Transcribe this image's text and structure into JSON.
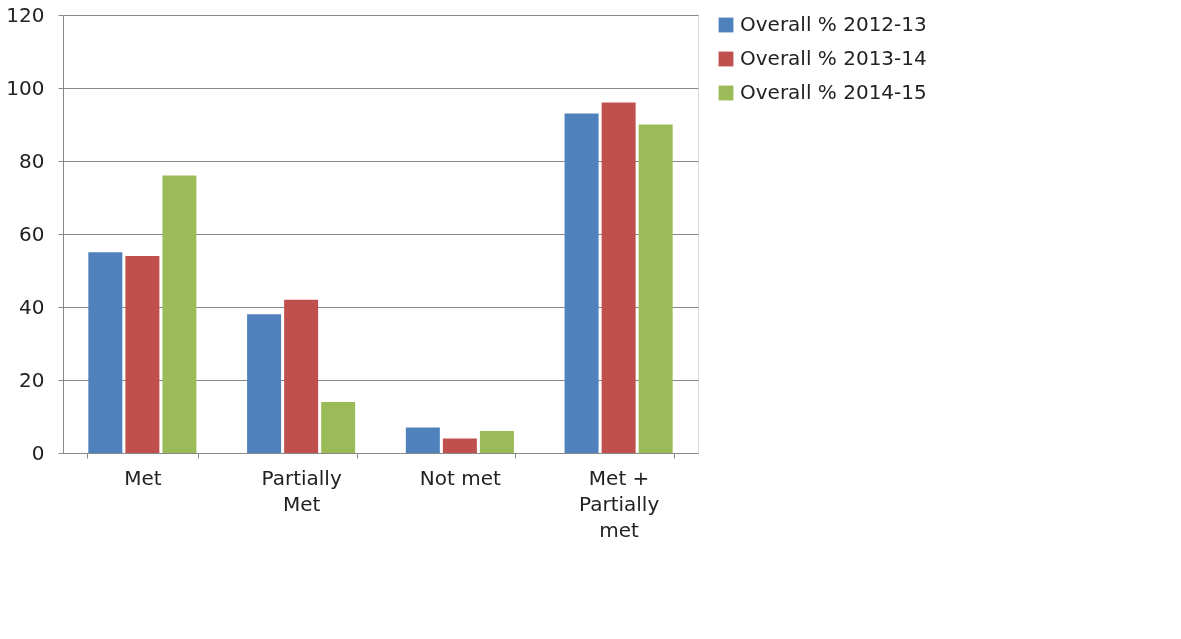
{
  "chart_data": {
    "type": "bar",
    "categories": [
      "Met",
      "Partially Met",
      "Not met",
      "Met + Partially met"
    ],
    "series": [
      {
        "name": "Overall % 2012-13",
        "color": "#4f81bd",
        "values": [
          55,
          38,
          7,
          93
        ]
      },
      {
        "name": "Overall % 2013-14",
        "color": "#c0504d",
        "values": [
          54,
          42,
          4,
          96
        ]
      },
      {
        "name": "Overall %  2014-15",
        "color": "#9bbb59",
        "values": [
          76,
          14,
          6,
          90
        ]
      }
    ],
    "ylim": [
      0,
      120
    ],
    "yticks": [
      0,
      20,
      40,
      60,
      80,
      100,
      120
    ],
    "grid": "y",
    "legend": "right"
  }
}
